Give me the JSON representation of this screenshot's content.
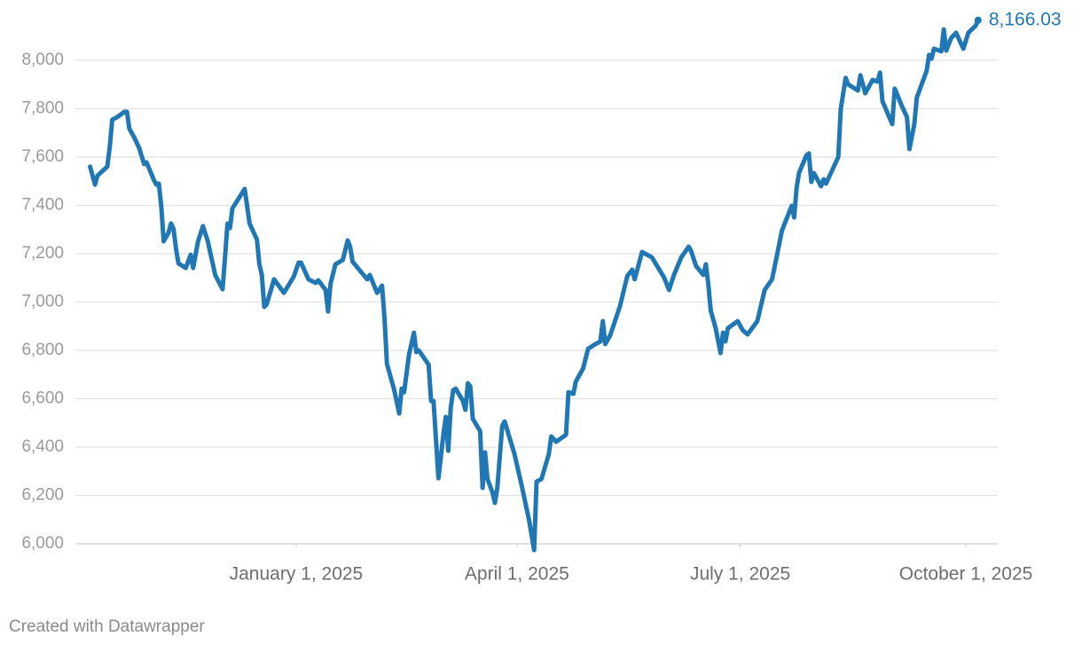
{
  "chart_data": {
    "type": "line",
    "credit": "Created with Datawrapper",
    "xlim": [
      "2024-10-03",
      "2025-10-14"
    ],
    "ylim": [
      6000,
      8200
    ],
    "yticks": [
      {
        "value": 6000,
        "label": "6,000"
      },
      {
        "value": 6200,
        "label": "6,200"
      },
      {
        "value": 6400,
        "label": "6,400"
      },
      {
        "value": 6600,
        "label": "6,600"
      },
      {
        "value": 6800,
        "label": "6,800"
      },
      {
        "value": 7000,
        "label": "7,000"
      },
      {
        "value": 7200,
        "label": "7,200"
      },
      {
        "value": 7400,
        "label": "7,400"
      },
      {
        "value": 7600,
        "label": "7,600"
      },
      {
        "value": 7800,
        "label": "7,800"
      },
      {
        "value": 8000,
        "label": "8,000"
      }
    ],
    "xticks": [
      {
        "value": "2025-01-01",
        "label": "January 1, 2025"
      },
      {
        "value": "2025-04-01",
        "label": "April 1, 2025"
      },
      {
        "value": "2025-07-01",
        "label": "July 1, 2025"
      },
      {
        "value": "2025-10-01",
        "label": "October 1, 2025"
      }
    ],
    "grid": true,
    "x": [
      "2024-10-09",
      "2024-10-11",
      "2024-10-12",
      "2024-10-16",
      "2024-10-17",
      "2024-10-18",
      "2024-10-20",
      "2024-10-23",
      "2024-10-24",
      "2024-10-25",
      "2024-10-27",
      "2024-10-29",
      "2024-10-31",
      "2024-11-01",
      "2024-11-04",
      "2024-11-05",
      "2024-11-06",
      "2024-11-07",
      "2024-11-08",
      "2024-11-10",
      "2024-11-11",
      "2024-11-12",
      "2024-11-13",
      "2024-11-14",
      "2024-11-17",
      "2024-11-19",
      "2024-11-20",
      "2024-11-22",
      "2024-11-24",
      "2024-11-26",
      "2024-11-27",
      "2024-11-29",
      "2024-12-02",
      "2024-12-03",
      "2024-12-04",
      "2024-12-05",
      "2024-12-06",
      "2024-12-11",
      "2024-12-12",
      "2024-12-13",
      "2024-12-16",
      "2024-12-17",
      "2024-12-18",
      "2024-12-19",
      "2024-12-20",
      "2024-12-23",
      "2024-12-27",
      "2024-12-31",
      "2025-01-02",
      "2025-01-03",
      "2025-01-06",
      "2025-01-09",
      "2025-01-10",
      "2025-01-13",
      "2025-01-14",
      "2025-01-15",
      "2025-01-17",
      "2025-01-20",
      "2025-01-22",
      "2025-01-23",
      "2025-01-24",
      "2025-01-27",
      "2025-01-30",
      "2025-01-31",
      "2025-02-03",
      "2025-02-05",
      "2025-02-06",
      "2025-02-07",
      "2025-02-10",
      "2025-02-12",
      "2025-02-13",
      "2025-02-14",
      "2025-02-16",
      "2025-02-18",
      "2025-02-19",
      "2025-02-20",
      "2025-02-24",
      "2025-02-25",
      "2025-02-26",
      "2025-02-28",
      "2025-03-02",
      "2025-03-03",
      "2025-03-04",
      "2025-03-05",
      "2025-03-06",
      "2025-03-07",
      "2025-03-10",
      "2025-03-11",
      "2025-03-12",
      "2025-03-13",
      "2025-03-14",
      "2025-03-17",
      "2025-03-18",
      "2025-03-19",
      "2025-03-20",
      "2025-03-22",
      "2025-03-23",
      "2025-03-24",
      "2025-03-26",
      "2025-03-27",
      "2025-03-31",
      "2025-04-03",
      "2025-04-06",
      "2025-04-08",
      "2025-04-09",
      "2025-04-11",
      "2025-04-14",
      "2025-04-15",
      "2025-04-17",
      "2025-04-21",
      "2025-04-22",
      "2025-04-24",
      "2025-04-25",
      "2025-04-28",
      "2025-04-30",
      "2025-05-03",
      "2025-05-05",
      "2025-05-06",
      "2025-05-07",
      "2025-05-09",
      "2025-05-13",
      "2025-05-16",
      "2025-05-18",
      "2025-05-19",
      "2025-05-22",
      "2025-05-24",
      "2025-05-26",
      "2025-05-31",
      "2025-06-02",
      "2025-06-04",
      "2025-06-07",
      "2025-06-10",
      "2025-06-11",
      "2025-06-13",
      "2025-06-16",
      "2025-06-17",
      "2025-06-18",
      "2025-06-19",
      "2025-06-21",
      "2025-06-23",
      "2025-06-24",
      "2025-06-25",
      "2025-06-26",
      "2025-06-30",
      "2025-07-02",
      "2025-07-04",
      "2025-07-08",
      "2025-07-09",
      "2025-07-11",
      "2025-07-14",
      "2025-07-16",
      "2025-07-18",
      "2025-07-22",
      "2025-07-23",
      "2025-07-24",
      "2025-07-25",
      "2025-07-28",
      "2025-07-29",
      "2025-07-30",
      "2025-07-31",
      "2025-08-03",
      "2025-08-04",
      "2025-08-05",
      "2025-08-07",
      "2025-08-10",
      "2025-08-11",
      "2025-08-13",
      "2025-08-14",
      "2025-08-18",
      "2025-08-19",
      "2025-08-21",
      "2025-08-24",
      "2025-08-26",
      "2025-08-27",
      "2025-08-28",
      "2025-09-01",
      "2025-09-02",
      "2025-09-05",
      "2025-09-07",
      "2025-09-08",
      "2025-09-10",
      "2025-09-11",
      "2025-09-15",
      "2025-09-16",
      "2025-09-17",
      "2025-09-18",
      "2025-09-21",
      "2025-09-22",
      "2025-09-23",
      "2025-09-25",
      "2025-09-27",
      "2025-09-30",
      "2025-10-02",
      "2025-10-05",
      "2025-10-06"
    ],
    "series": [
      {
        "color": "#1f77b4",
        "values": [
          7560,
          7486,
          7523,
          7560,
          7640,
          7754,
          7765,
          7787,
          7787,
          7717,
          7681,
          7637,
          7571,
          7578,
          7505,
          7486,
          7490,
          7398,
          7251,
          7288,
          7325,
          7303,
          7222,
          7160,
          7141,
          7196,
          7141,
          7251,
          7314,
          7251,
          7204,
          7112,
          7053,
          7185,
          7325,
          7306,
          7387,
          7468,
          7398,
          7325,
          7259,
          7156,
          7112,
          6980,
          6991,
          7094,
          7038,
          7105,
          7163,
          7163,
          7094,
          7079,
          7090,
          7050,
          6961,
          7075,
          7156,
          7174,
          7255,
          7229,
          7167,
          7130,
          7094,
          7112,
          7038,
          7068,
          6936,
          6745,
          6635,
          6539,
          6642,
          6627,
          6782,
          6873,
          6793,
          6800,
          6741,
          6591,
          6591,
          6271,
          6451,
          6525,
          6385,
          6561,
          6635,
          6642,
          6591,
          6554,
          6664,
          6650,
          6517,
          6466,
          6231,
          6378,
          6268,
          6213,
          6169,
          6231,
          6488,
          6506,
          6371,
          6238,
          6095,
          5974,
          6257,
          6268,
          6371,
          6444,
          6422,
          6451,
          6627,
          6620,
          6671,
          6726,
          6807,
          6826,
          6837,
          6921,
          6826,
          6862,
          6983,
          7108,
          7134,
          7094,
          7207,
          7196,
          7185,
          7101,
          7050,
          7112,
          7185,
          7229,
          7211,
          7149,
          7112,
          7156,
          7075,
          6965,
          6892,
          6789,
          6873,
          6837,
          6892,
          6921,
          6884,
          6866,
          6921,
          6965,
          7050,
          7094,
          7193,
          7295,
          7398,
          7350,
          7472,
          7534,
          7607,
          7615,
          7497,
          7534,
          7479,
          7508,
          7490,
          7534,
          7600,
          7798,
          7927,
          7901,
          7875,
          7938,
          7864,
          7919,
          7912,
          7949,
          7831,
          7736,
          7883,
          7809,
          7765,
          7633,
          7736,
          7846,
          7956,
          8022,
          8007,
          8048,
          8037,
          8128,
          8040,
          8092,
          8114,
          8048,
          8114,
          8143,
          8166.03
        ],
        "value_labels": [
          null,
          null,
          null,
          null,
          null,
          null,
          null,
          null,
          null,
          null,
          null,
          null,
          null,
          null,
          null,
          null,
          null,
          null,
          null,
          null,
          null,
          null,
          null,
          null,
          null,
          null,
          null,
          null,
          null,
          null,
          null,
          null,
          null,
          null,
          null,
          null,
          null,
          null,
          null,
          null,
          null,
          null,
          null,
          null,
          null,
          null,
          null,
          null,
          null,
          null,
          null,
          null,
          null,
          null,
          null,
          null,
          null,
          null,
          null,
          null,
          null,
          null,
          null,
          null,
          null,
          null,
          null,
          null,
          null,
          null,
          null,
          null,
          null,
          null,
          null,
          null,
          null,
          null,
          null,
          null,
          null,
          null,
          null,
          null,
          null,
          null,
          null,
          null,
          null,
          null,
          null,
          null,
          null,
          null,
          null,
          null,
          null,
          null,
          null,
          null,
          null,
          null,
          null,
          null,
          null,
          null,
          null,
          null,
          null,
          null,
          null,
          null,
          null,
          null,
          null,
          null,
          null,
          null,
          null,
          null,
          null,
          null,
          null,
          null,
          null,
          null,
          null,
          null,
          null,
          null,
          null,
          null,
          null,
          null,
          null,
          null,
          null,
          null,
          null,
          null,
          null,
          null,
          null,
          null,
          null,
          null,
          null,
          null,
          null,
          null,
          null,
          null,
          null,
          null,
          null,
          null,
          null,
          null,
          null,
          null,
          null,
          null,
          null,
          null,
          null,
          null,
          null,
          null,
          null,
          null,
          null,
          null,
          null,
          null,
          null,
          null,
          null,
          null,
          null,
          null,
          null,
          null,
          null,
          null,
          null,
          null,
          null,
          null,
          null,
          null,
          null,
          null,
          null,
          null,
          "8,166.03"
        ]
      }
    ]
  }
}
